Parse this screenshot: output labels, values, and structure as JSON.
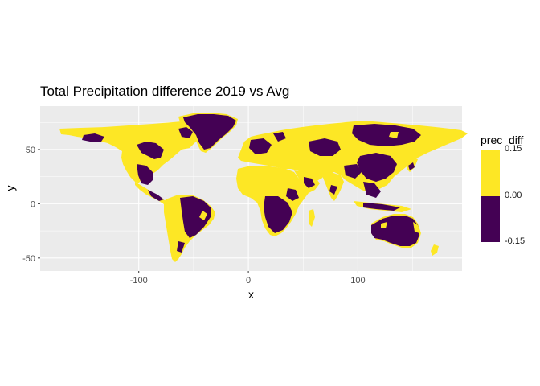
{
  "title": "Total Precipitation difference 2019 vs Avg",
  "axes": {
    "x_label": "x",
    "y_label": "y",
    "x_ticks": [
      -100,
      0,
      100
    ],
    "y_ticks": [
      -50,
      0,
      50
    ],
    "x_range": [
      -190,
      195
    ],
    "y_range": [
      -62,
      90
    ]
  },
  "legend": {
    "title": "prec_diff",
    "labels": [
      "0.15",
      "0.00",
      "-0.15"
    ]
  },
  "colors": {
    "panel": "#ebebeb",
    "grid_major": "#ffffff",
    "positive": "#fde725",
    "negative": "#440154"
  },
  "map_data": {
    "variable": "prec_diff",
    "value_range": [
      -0.15,
      0.15
    ],
    "palette": "viridis (binned)",
    "regions": [
      {
        "name": "Canada & Alaska",
        "value": 0.15
      },
      {
        "name": "Greenland",
        "value": -0.15
      },
      {
        "name": "Eastern United States",
        "value": 0.15
      },
      {
        "name": "Mexico & Central America",
        "value": -0.15
      },
      {
        "name": "Amazon",
        "value": -0.15
      },
      {
        "name": "Andes & Patagonia",
        "value": 0.15
      },
      {
        "name": "Western Europe",
        "value": 0.15
      },
      {
        "name": "Sahara",
        "value": 0.15
      },
      {
        "name": "Southern Africa",
        "value": -0.15
      },
      {
        "name": "Siberia",
        "value": -0.15
      },
      {
        "name": "South & East Asia",
        "value": -0.15
      },
      {
        "name": "Australia",
        "value": -0.15
      },
      {
        "name": "New Zealand",
        "value": 0.15
      }
    ]
  }
}
